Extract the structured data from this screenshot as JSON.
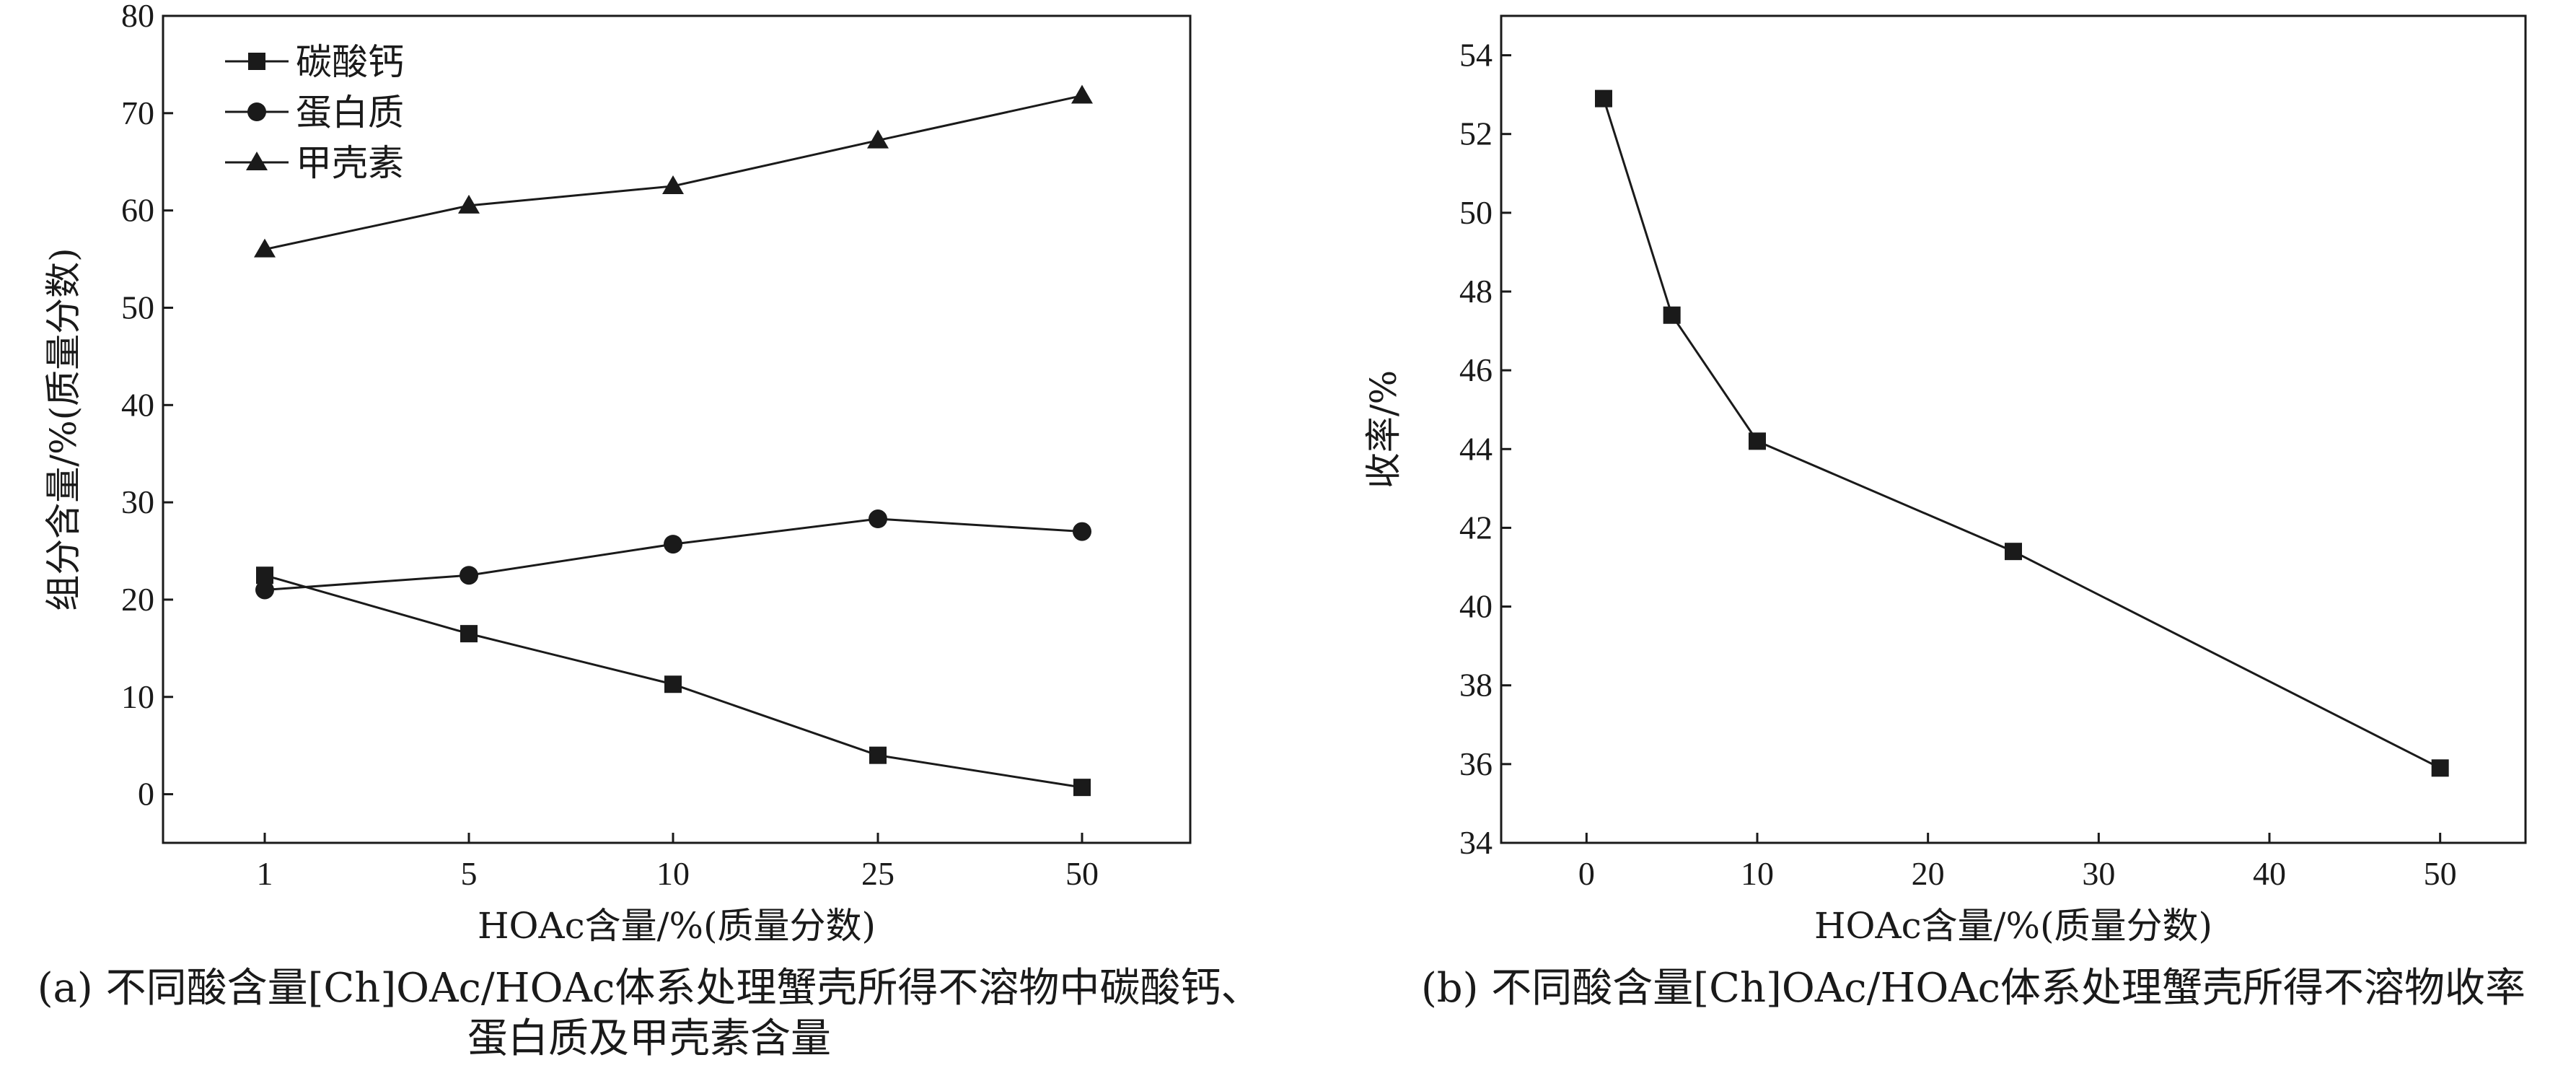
{
  "chart_data": [
    {
      "panel": "a",
      "type": "line",
      "x_scale": "categorical",
      "categories": [
        "1",
        "5",
        "10",
        "25",
        "50"
      ],
      "series": [
        {
          "name": "碳酸钙",
          "marker": "square",
          "values": [
            22.5,
            16.5,
            11.3,
            4.0,
            0.7
          ]
        },
        {
          "name": "蛋白质",
          "marker": "circle",
          "values": [
            21.0,
            22.5,
            25.7,
            28.3,
            27.0
          ]
        },
        {
          "name": "甲壳素",
          "marker": "triangle",
          "values": [
            56.0,
            60.5,
            62.5,
            67.2,
            71.8
          ]
        }
      ],
      "xlabel": "HOAc含量/%(质量分数)",
      "ylabel": "组分含量/%(质量分数)",
      "ylim": [
        -5,
        80
      ],
      "yticks": [
        0,
        10,
        20,
        30,
        40,
        50,
        60,
        70,
        80
      ],
      "legend": "top-left",
      "grid": false,
      "caption_lines": [
        "(a) 不同酸含量[Ch]OAc/HOAc体系处理蟹壳所得不溶物中碳酸钙、",
        "蛋白质及甲壳素含量"
      ]
    },
    {
      "panel": "b",
      "type": "line",
      "x_scale": "linear",
      "series": [
        {
          "name": "收率",
          "marker": "square",
          "x": [
            1,
            5,
            10,
            25,
            50
          ],
          "values": [
            52.9,
            47.4,
            44.2,
            41.4,
            35.9
          ]
        }
      ],
      "xlabel": "HOAc含量/%(质量分数)",
      "ylabel": "收率/%",
      "xlim": [
        -5,
        55
      ],
      "xticks": [
        0,
        10,
        20,
        30,
        40,
        50
      ],
      "ylim": [
        34,
        55
      ],
      "yticks": [
        34,
        36,
        38,
        40,
        42,
        44,
        46,
        48,
        50,
        52,
        54
      ],
      "grid": false,
      "caption_lines": [
        "(b) 不同酸含量[Ch]OAc/HOAc体系处理蟹壳所得不溶物收率"
      ]
    }
  ]
}
